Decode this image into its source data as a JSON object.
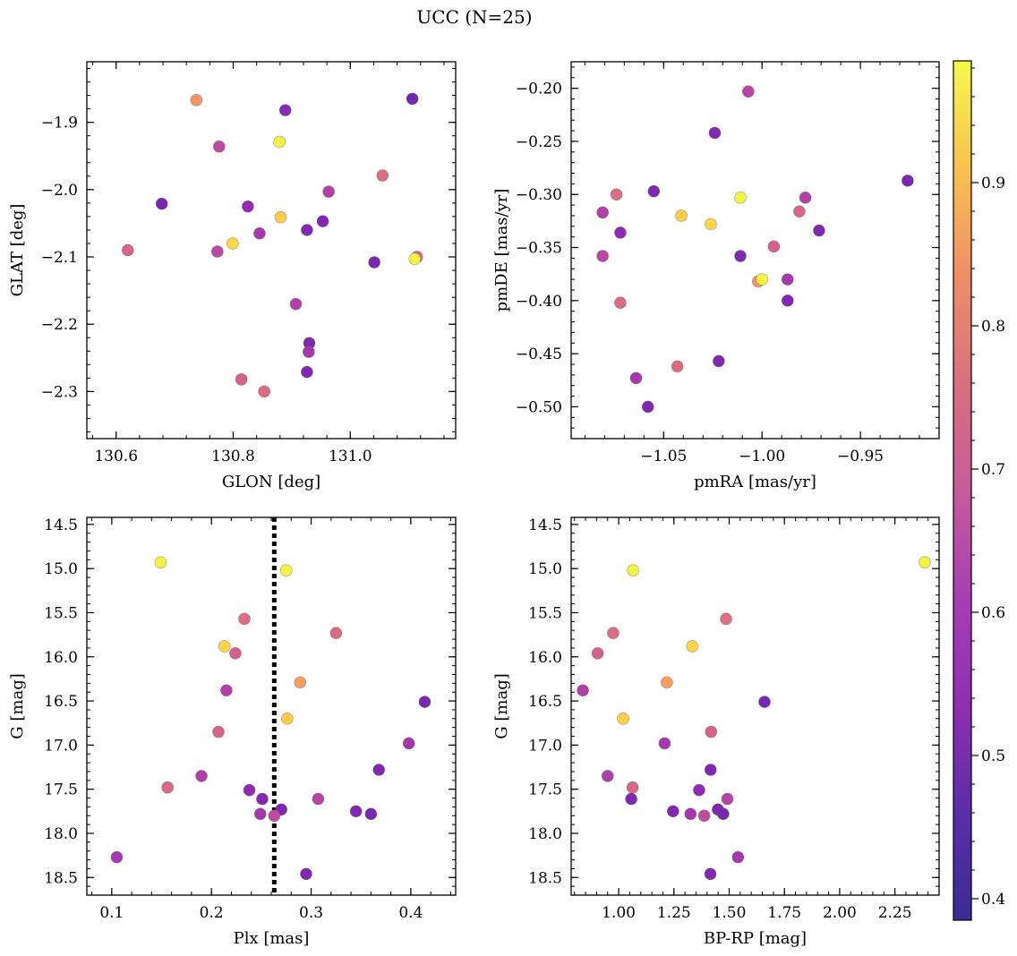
{
  "figure": {
    "title": "UCC (N=25)"
  },
  "colorbar": {
    "colormap": "plasma",
    "range": [
      0.385,
      0.985
    ],
    "ticks": [
      0.4,
      0.5,
      0.6,
      0.7,
      0.8,
      0.9
    ]
  },
  "chart_data": [
    {
      "type": "scatter",
      "panel": "top-left",
      "xlabel": "GLON [deg]",
      "ylabel": "GLAT [deg]",
      "xlim": [
        130.55,
        131.18
      ],
      "ylim": [
        -2.37,
        -1.81
      ],
      "y_inverted": false,
      "xticks": [
        130.6,
        130.8,
        131.0
      ],
      "yticks": [
        -1.9,
        -2.0,
        -2.1,
        -2.2,
        -2.3
      ],
      "points": [
        {
          "x": 130.737,
          "y": -1.867,
          "c": 0.78
        },
        {
          "x": 130.889,
          "y": -1.882,
          "c": 0.45
        },
        {
          "x": 131.106,
          "y": -1.865,
          "c": 0.42
        },
        {
          "x": 130.776,
          "y": -1.936,
          "c": 0.58
        },
        {
          "x": 130.879,
          "y": -1.929,
          "c": 0.97
        },
        {
          "x": 131.055,
          "y": -1.979,
          "c": 0.68
        },
        {
          "x": 130.678,
          "y": -2.021,
          "c": 0.42
        },
        {
          "x": 130.825,
          "y": -2.025,
          "c": 0.48
        },
        {
          "x": 130.963,
          "y": -2.003,
          "c": 0.55
        },
        {
          "x": 130.881,
          "y": -2.041,
          "c": 0.9
        },
        {
          "x": 130.845,
          "y": -2.065,
          "c": 0.52
        },
        {
          "x": 130.799,
          "y": -2.08,
          "c": 0.92
        },
        {
          "x": 130.926,
          "y": -2.06,
          "c": 0.44
        },
        {
          "x": 130.953,
          "y": -2.047,
          "c": 0.44
        },
        {
          "x": 130.62,
          "y": -2.09,
          "c": 0.65
        },
        {
          "x": 130.773,
          "y": -2.092,
          "c": 0.57
        },
        {
          "x": 131.041,
          "y": -2.108,
          "c": 0.42
        },
        {
          "x": 131.114,
          "y": -2.1,
          "c": 0.67
        },
        {
          "x": 131.11,
          "y": -2.103,
          "c": 0.97
        },
        {
          "x": 130.907,
          "y": -2.17,
          "c": 0.55
        },
        {
          "x": 130.93,
          "y": -2.228,
          "c": 0.44
        },
        {
          "x": 130.929,
          "y": -2.241,
          "c": 0.52
        },
        {
          "x": 130.926,
          "y": -2.271,
          "c": 0.44
        },
        {
          "x": 130.814,
          "y": -2.282,
          "c": 0.64
        },
        {
          "x": 130.853,
          "y": -2.3,
          "c": 0.67
        }
      ]
    },
    {
      "type": "scatter",
      "panel": "top-right",
      "xlabel": "pmRA [mas/yr]",
      "ylabel": "pmDE [mas/yr]",
      "xlim": [
        -1.097,
        -0.91
      ],
      "ylim": [
        -0.53,
        -0.175
      ],
      "y_inverted": false,
      "xticks": [
        -1.05,
        -1.0,
        -0.95
      ],
      "yticks": [
        -0.2,
        -0.25,
        -0.3,
        -0.35,
        -0.4,
        -0.45,
        -0.5
      ],
      "points": [
        {
          "x": -1.007,
          "y": -0.203,
          "c": 0.56
        },
        {
          "x": -1.024,
          "y": -0.242,
          "c": 0.44
        },
        {
          "x": -0.926,
          "y": -0.287,
          "c": 0.42
        },
        {
          "x": -1.055,
          "y": -0.297,
          "c": 0.44
        },
        {
          "x": -1.074,
          "y": -0.3,
          "c": 0.67
        },
        {
          "x": -1.011,
          "y": -0.303,
          "c": 0.97
        },
        {
          "x": -0.978,
          "y": -0.303,
          "c": 0.55
        },
        {
          "x": -1.081,
          "y": -0.317,
          "c": 0.55
        },
        {
          "x": -0.981,
          "y": -0.316,
          "c": 0.66
        },
        {
          "x": -1.041,
          "y": -0.32,
          "c": 0.9
        },
        {
          "x": -1.026,
          "y": -0.328,
          "c": 0.92
        },
        {
          "x": -0.971,
          "y": -0.334,
          "c": 0.44
        },
        {
          "x": -1.072,
          "y": -0.336,
          "c": 0.47
        },
        {
          "x": -0.994,
          "y": -0.349,
          "c": 0.64
        },
        {
          "x": -1.081,
          "y": -0.358,
          "c": 0.57
        },
        {
          "x": -1.011,
          "y": -0.358,
          "c": 0.44
        },
        {
          "x": -1.002,
          "y": -0.382,
          "c": 0.78
        },
        {
          "x": -1.0,
          "y": -0.38,
          "c": 0.97
        },
        {
          "x": -0.987,
          "y": -0.38,
          "c": 0.52
        },
        {
          "x": -0.987,
          "y": -0.4,
          "c": 0.44
        },
        {
          "x": -1.072,
          "y": -0.402,
          "c": 0.67
        },
        {
          "x": -1.043,
          "y": -0.462,
          "c": 0.67
        },
        {
          "x": -1.022,
          "y": -0.457,
          "c": 0.44
        },
        {
          "x": -1.064,
          "y": -0.473,
          "c": 0.52
        },
        {
          "x": -1.058,
          "y": -0.5,
          "c": 0.44
        }
      ]
    },
    {
      "type": "scatter",
      "panel": "bottom-left",
      "xlabel": "Plx [mas]",
      "ylabel": "G [mag]",
      "xlim": [
        0.075,
        0.445
      ],
      "ylim": [
        18.7,
        14.42
      ],
      "y_inverted": true,
      "xticks": [
        0.1,
        0.2,
        0.3,
        0.4
      ],
      "yticks": [
        14.5,
        15.0,
        15.5,
        16.0,
        16.5,
        17.0,
        17.5,
        18.0,
        18.5
      ],
      "vline": {
        "x": 0.263,
        "style": "dotted"
      },
      "points": [
        {
          "x": 0.149,
          "y": 14.93,
          "c": 0.97
        },
        {
          "x": 0.275,
          "y": 15.02,
          "c": 0.97
        },
        {
          "x": 0.233,
          "y": 15.57,
          "c": 0.68
        },
        {
          "x": 0.325,
          "y": 15.73,
          "c": 0.67
        },
        {
          "x": 0.213,
          "y": 15.88,
          "c": 0.92
        },
        {
          "x": 0.224,
          "y": 15.96,
          "c": 0.64
        },
        {
          "x": 0.289,
          "y": 16.29,
          "c": 0.8
        },
        {
          "x": 0.215,
          "y": 16.38,
          "c": 0.55
        },
        {
          "x": 0.414,
          "y": 16.51,
          "c": 0.42
        },
        {
          "x": 0.276,
          "y": 16.7,
          "c": 0.9
        },
        {
          "x": 0.207,
          "y": 16.85,
          "c": 0.65
        },
        {
          "x": 0.398,
          "y": 16.98,
          "c": 0.52
        },
        {
          "x": 0.368,
          "y": 17.28,
          "c": 0.44
        },
        {
          "x": 0.19,
          "y": 17.35,
          "c": 0.55
        },
        {
          "x": 0.156,
          "y": 17.48,
          "c": 0.66
        },
        {
          "x": 0.238,
          "y": 17.51,
          "c": 0.47
        },
        {
          "x": 0.251,
          "y": 17.61,
          "c": 0.44
        },
        {
          "x": 0.307,
          "y": 17.61,
          "c": 0.56
        },
        {
          "x": 0.27,
          "y": 17.73,
          "c": 0.44
        },
        {
          "x": 0.345,
          "y": 17.75,
          "c": 0.44
        },
        {
          "x": 0.36,
          "y": 17.78,
          "c": 0.42
        },
        {
          "x": 0.249,
          "y": 17.78,
          "c": 0.52
        },
        {
          "x": 0.263,
          "y": 17.8,
          "c": 0.58
        },
        {
          "x": 0.105,
          "y": 18.27,
          "c": 0.52
        },
        {
          "x": 0.295,
          "y": 18.46,
          "c": 0.44
        }
      ]
    },
    {
      "type": "scatter",
      "panel": "bottom-right",
      "xlabel": "BP-RP [mag]",
      "ylabel": "G [mag]",
      "xlim": [
        0.785,
        2.45
      ],
      "ylim": [
        18.7,
        14.42
      ],
      "y_inverted": true,
      "xticks": [
        1.0,
        1.25,
        1.5,
        1.75,
        2.0,
        2.25
      ],
      "yticks": [
        14.5,
        15.0,
        15.5,
        16.0,
        16.5,
        17.0,
        17.5,
        18.0,
        18.5
      ],
      "points": [
        {
          "x": 2.385,
          "y": 14.93,
          "c": 0.97
        },
        {
          "x": 1.065,
          "y": 15.02,
          "c": 0.97
        },
        {
          "x": 1.486,
          "y": 15.57,
          "c": 0.68
        },
        {
          "x": 0.975,
          "y": 15.73,
          "c": 0.67
        },
        {
          "x": 1.333,
          "y": 15.88,
          "c": 0.92
        },
        {
          "x": 0.905,
          "y": 15.96,
          "c": 0.64
        },
        {
          "x": 1.218,
          "y": 16.29,
          "c": 0.8
        },
        {
          "x": 0.838,
          "y": 16.38,
          "c": 0.55
        },
        {
          "x": 1.66,
          "y": 16.51,
          "c": 0.42
        },
        {
          "x": 1.02,
          "y": 16.7,
          "c": 0.9
        },
        {
          "x": 1.418,
          "y": 16.85,
          "c": 0.65
        },
        {
          "x": 1.208,
          "y": 16.98,
          "c": 0.52
        },
        {
          "x": 1.416,
          "y": 17.28,
          "c": 0.44
        },
        {
          "x": 0.95,
          "y": 17.35,
          "c": 0.55
        },
        {
          "x": 1.063,
          "y": 17.48,
          "c": 0.66
        },
        {
          "x": 1.364,
          "y": 17.51,
          "c": 0.47
        },
        {
          "x": 1.057,
          "y": 17.61,
          "c": 0.44
        },
        {
          "x": 1.492,
          "y": 17.61,
          "c": 0.56
        },
        {
          "x": 1.449,
          "y": 17.73,
          "c": 0.44
        },
        {
          "x": 1.246,
          "y": 17.75,
          "c": 0.44
        },
        {
          "x": 1.473,
          "y": 17.78,
          "c": 0.42
        },
        {
          "x": 1.325,
          "y": 17.78,
          "c": 0.52
        },
        {
          "x": 1.387,
          "y": 17.8,
          "c": 0.58
        },
        {
          "x": 1.54,
          "y": 18.27,
          "c": 0.52
        },
        {
          "x": 1.415,
          "y": 18.46,
          "c": 0.44
        }
      ]
    }
  ]
}
